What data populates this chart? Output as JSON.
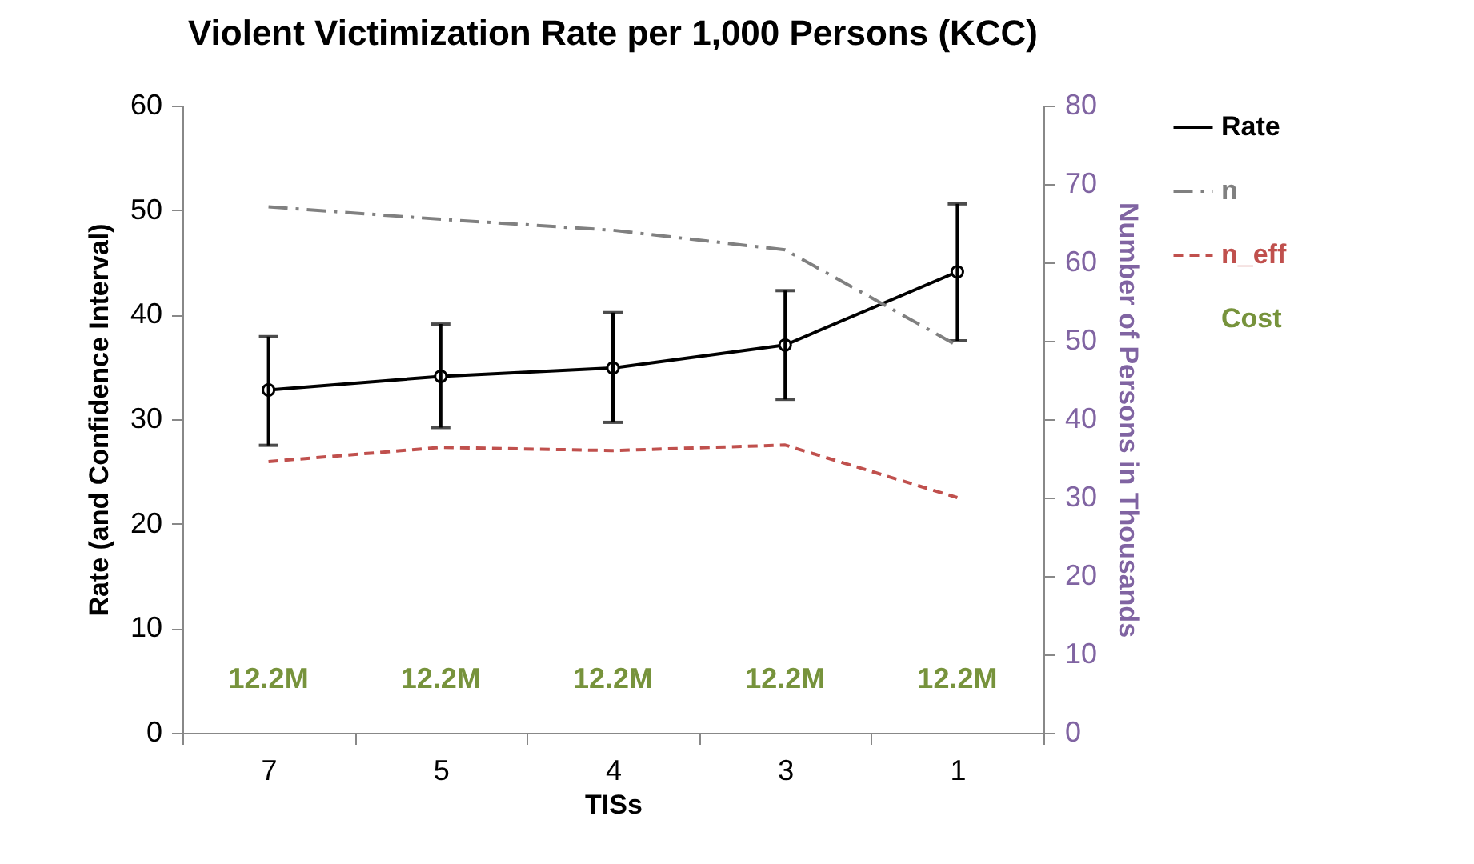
{
  "chart_data": {
    "type": "line",
    "title": "Violent Victimization Rate per 1,000 Persons (KCC)",
    "xlabel": "TISs",
    "ylabel": "Rate (and Confidence Interval)",
    "y2label": "Number of Persons in Thousands",
    "categories": [
      "7",
      "5",
      "4",
      "3",
      "1"
    ],
    "ylim": [
      0,
      60
    ],
    "yticks": [
      0,
      10,
      20,
      30,
      40,
      50,
      60
    ],
    "y2lim": [
      0,
      80
    ],
    "y2ticks": [
      0,
      10,
      20,
      30,
      40,
      50,
      60,
      70,
      80
    ],
    "grid": false,
    "legend": "right",
    "series": [
      {
        "name": "Rate",
        "color": "#000000",
        "marker": "circle",
        "line_style": "solid",
        "values": [
          32.8,
          34.1,
          34.9,
          37.1,
          44.1
        ],
        "errors": [
          [
            27.5,
            37.9
          ],
          [
            29.2,
            39.1
          ],
          [
            29.7,
            40.2
          ],
          [
            31.9,
            42.3
          ],
          [
            37.5,
            50.6
          ]
        ]
      },
      {
        "name": "n",
        "color": "#808080",
        "axis": "y2",
        "marker": "none",
        "line_style": "dashdot",
        "values": [
          67.1,
          65.5,
          64.1,
          61.6,
          49.4
        ]
      },
      {
        "name": "n_eff",
        "color": "#c0504d",
        "axis": "y2",
        "marker": "none",
        "line_style": "dashed",
        "values": [
          34.6,
          36.4,
          36.0,
          36.7,
          30.0
        ]
      },
      {
        "name": "Cost",
        "color": "#77933c",
        "type": "scatter",
        "marker": "none",
        "values": [
          null,
          null,
          null,
          null,
          null
        ],
        "value_labels": [
          "12.2M",
          "12.2M",
          "12.2M",
          "12.2M",
          "12.2M"
        ]
      }
    ]
  }
}
